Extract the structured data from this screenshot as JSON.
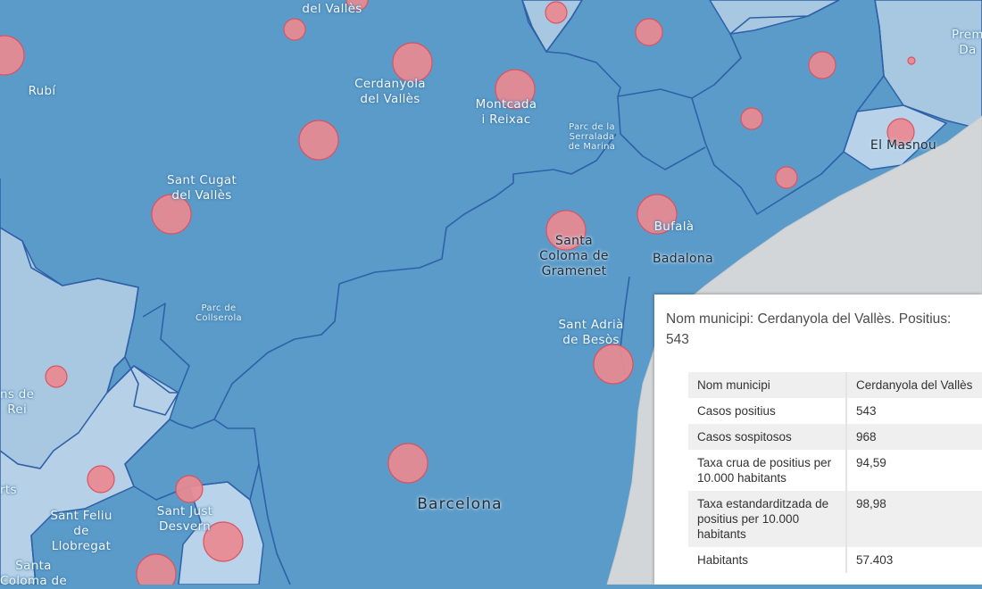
{
  "map": {
    "places": [
      {
        "id": "del-valles-top",
        "text": "del Vallès"
      },
      {
        "id": "rubi",
        "text": "Rubí"
      },
      {
        "id": "cerdanyola",
        "text": "Cerdanyola\ndel Vallès"
      },
      {
        "id": "montcada",
        "text": "Montcada\ni Reixac"
      },
      {
        "id": "parc-serralada",
        "text": "Parc de la\nSerralada\nde Marina"
      },
      {
        "id": "el-masnou",
        "text": "El Masnou"
      },
      {
        "id": "sant-cugat",
        "text": "Sant Cugat\ndel Vallès"
      },
      {
        "id": "santa-coloma",
        "text": "Santa\nColoma de\nGramenet"
      },
      {
        "id": "bufala",
        "text": "Bufalà"
      },
      {
        "id": "badalona",
        "text": "Badalona"
      },
      {
        "id": "parc-collserola",
        "text": "Parc de\nCollserola"
      },
      {
        "id": "sant-adria",
        "text": "Sant Adrià\nde Besòs"
      },
      {
        "id": "ns-de-rei",
        "text": "ns de\nRei"
      },
      {
        "id": "rts",
        "text": "rts"
      },
      {
        "id": "sant-feliu",
        "text": "Sant Feliu\nde\nLlobregat"
      },
      {
        "id": "sant-just",
        "text": "Sant Just\nDesvern"
      },
      {
        "id": "barcelona",
        "text": "Barcelona"
      },
      {
        "id": "santa-bottom",
        "text": "Santa\nColoma de"
      },
      {
        "id": "prem",
        "text": "Prem\nDa"
      }
    ]
  },
  "popup": {
    "title": "Nom municipi: Cerdanyola del Vallès. Positius: 543",
    "rows": [
      {
        "key": "Nom municipi",
        "value": "Cerdanyola del Vallès"
      },
      {
        "key": "Casos positius",
        "value": "543"
      },
      {
        "key": "Casos sospitosos",
        "value": "968"
      },
      {
        "key": "Taxa crua de positius per 10.000 habitants",
        "value": "94,59"
      },
      {
        "key": "Taxa estandarditzada de positius per 10.000 habitants",
        "value": "98,98"
      },
      {
        "key": "Habitants",
        "value": "57.403"
      }
    ]
  },
  "colors": {
    "region_fill": "#5b9bc9",
    "light_region_fill": "#a9c9e3",
    "sea": "#d3d6d8",
    "circle_fill": "#e98a92",
    "circle_stroke": "#d95463",
    "boundary": "#2f61a8"
  }
}
